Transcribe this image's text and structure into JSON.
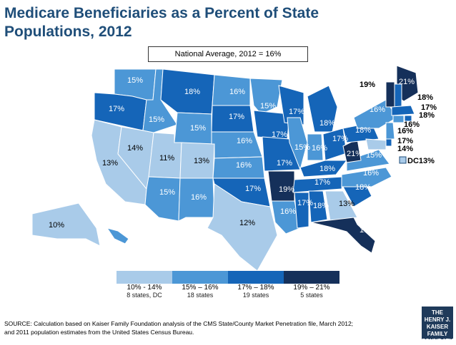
{
  "title_line1": "Medicare Beneficiaries as a Percent of State",
  "title_line2": "Populations, 2012",
  "national_average": "National Average, 2012 = 16%",
  "colors": {
    "c1": "#a9cbe9",
    "c2": "#4c97d6",
    "c3": "#1565b8",
    "c4": "#15305a"
  },
  "states": [
    {
      "abbr": "WA",
      "label": "15%",
      "cls": "c2"
    },
    {
      "abbr": "OR",
      "label": "17%",
      "cls": "c3"
    },
    {
      "abbr": "CA",
      "label": "13%",
      "cls": "c1"
    },
    {
      "abbr": "NV",
      "label": "14%",
      "cls": "c1"
    },
    {
      "abbr": "ID",
      "label": "15%",
      "cls": "c2"
    },
    {
      "abbr": "MT",
      "label": "18%",
      "cls": "c3"
    },
    {
      "abbr": "WY",
      "label": "15%",
      "cls": "c2"
    },
    {
      "abbr": "UT",
      "label": "11%",
      "cls": "c1"
    },
    {
      "abbr": "AZ",
      "label": "15%",
      "cls": "c2"
    },
    {
      "abbr": "CO",
      "label": "13%",
      "cls": "c1"
    },
    {
      "abbr": "NM",
      "label": "16%",
      "cls": "c2"
    },
    {
      "abbr": "ND",
      "label": "16%",
      "cls": "c2"
    },
    {
      "abbr": "SD",
      "label": "17%",
      "cls": "c3"
    },
    {
      "abbr": "NE",
      "label": "16%",
      "cls": "c2"
    },
    {
      "abbr": "KS",
      "label": "16%",
      "cls": "c2"
    },
    {
      "abbr": "OK",
      "label": "17%",
      "cls": "c3"
    },
    {
      "abbr": "TX",
      "label": "12%",
      "cls": "c1"
    },
    {
      "abbr": "MN",
      "label": "15%",
      "cls": "c2"
    },
    {
      "abbr": "IA",
      "label": "17%",
      "cls": "c3"
    },
    {
      "abbr": "MO",
      "label": "17%",
      "cls": "c3"
    },
    {
      "abbr": "AR",
      "label": "19%",
      "cls": "c4"
    },
    {
      "abbr": "LA",
      "label": "16%",
      "cls": "c2"
    },
    {
      "abbr": "WI",
      "label": "17%",
      "cls": "c3"
    },
    {
      "abbr": "IL",
      "label": "15%",
      "cls": "c2"
    },
    {
      "abbr": "MI",
      "label": "18%",
      "cls": "c3"
    },
    {
      "abbr": "IN",
      "label": "16%",
      "cls": "c2"
    },
    {
      "abbr": "OH",
      "label": "17%",
      "cls": "c3"
    },
    {
      "abbr": "KY",
      "label": "18%",
      "cls": "c3"
    },
    {
      "abbr": "TN",
      "label": "17%",
      "cls": "c3"
    },
    {
      "abbr": "MS",
      "label": "17%",
      "cls": "c3"
    },
    {
      "abbr": "AL",
      "label": "18%",
      "cls": "c3"
    },
    {
      "abbr": "GA",
      "label": "13%",
      "cls": "c1"
    },
    {
      "abbr": "FL",
      "label": "19%",
      "cls": "c4"
    },
    {
      "abbr": "SC",
      "label": "18%",
      "cls": "c3"
    },
    {
      "abbr": "NC",
      "label": "16%",
      "cls": "c2"
    },
    {
      "abbr": "VA",
      "label": "15%",
      "cls": "c2"
    },
    {
      "abbr": "WV",
      "label": "21%",
      "cls": "c4"
    },
    {
      "abbr": "PA",
      "label": "18%",
      "cls": "c3"
    },
    {
      "abbr": "NY",
      "label": "16%",
      "cls": "c2"
    },
    {
      "abbr": "VT",
      "label": "19%",
      "cls": "c4"
    },
    {
      "abbr": "ME",
      "label": "21%",
      "cls": "c4"
    },
    {
      "abbr": "NH",
      "label": "18%",
      "cls": "c3"
    },
    {
      "abbr": "MA",
      "label": "17%",
      "cls": "c3"
    },
    {
      "abbr": "RI",
      "label": "18%",
      "cls": "c3"
    },
    {
      "abbr": "CT",
      "label": "16%",
      "cls": "c2"
    },
    {
      "abbr": "NJ",
      "label": "16%",
      "cls": "c2"
    },
    {
      "abbr": "DE",
      "label": "17%",
      "cls": "c3"
    },
    {
      "abbr": "MD",
      "label": "14%",
      "cls": "c1"
    },
    {
      "abbr": "AK",
      "label": "10%",
      "cls": "c1"
    },
    {
      "abbr": "HI",
      "label": "16%",
      "cls": "c2"
    }
  ],
  "dc_label": "DC13%",
  "legend": [
    {
      "range": "10% - 14%",
      "count": "8 states, DC",
      "cls": "c1"
    },
    {
      "range": "15% – 16%",
      "count": "18 states",
      "cls": "c2"
    },
    {
      "range": "17% – 18%",
      "count": "19 states",
      "cls": "c3"
    },
    {
      "range": "19% – 21%",
      "count": "5 states",
      "cls": "c4"
    }
  ],
  "source_line1": "SOURCE: Calculation based on Kaiser Family Foundation analysis of the CMS State/County Market Penetration file, March 2012;",
  "source_line2": "and 2011 population estimates from the United States Census Bureau.",
  "logo": [
    "THE HENRY J.",
    "KAISER",
    "FAMILY",
    "FOUNDATION"
  ]
}
